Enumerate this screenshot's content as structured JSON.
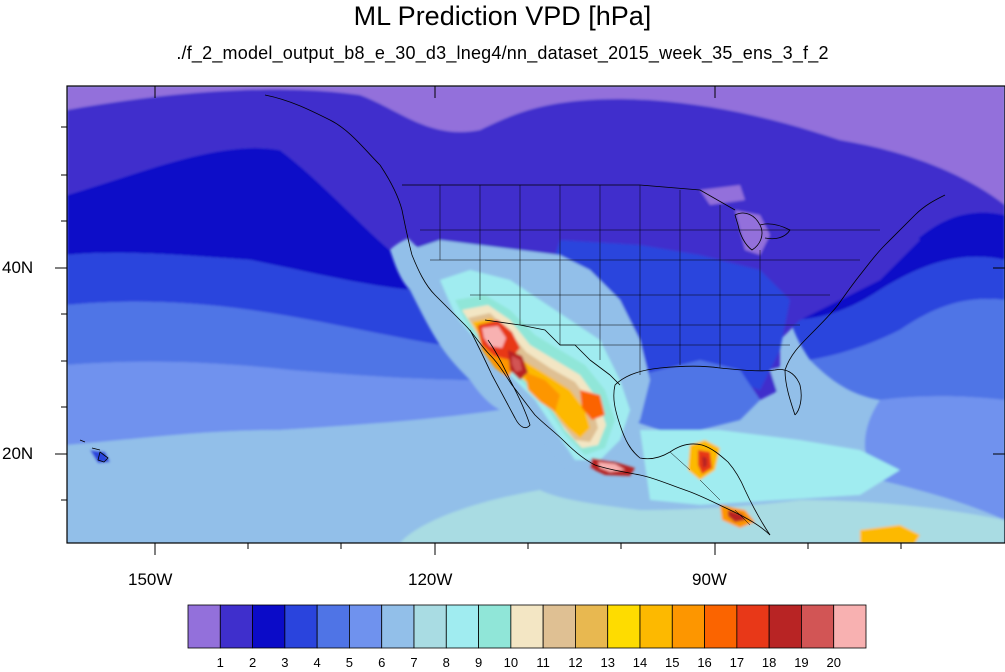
{
  "title": "ML Prediction VPD [hPa]",
  "subtitle": "./f_2_model_output_b8_e_30_d3_lneg4/nn_dataset_2015_week_35_ens_3_f_2",
  "axes": {
    "x_ticks": [
      "150W",
      "120W",
      "90W"
    ],
    "y_ticks": [
      "40N",
      "20N"
    ]
  },
  "colorbar": {
    "labels": [
      "1",
      "2",
      "3",
      "4",
      "5",
      "6",
      "7",
      "8",
      "9",
      "10",
      "11",
      "12",
      "13",
      "14",
      "15",
      "16",
      "17",
      "18",
      "19",
      "20"
    ],
    "colors": [
      "#9370db",
      "#3f2fcc",
      "#0b0bc8",
      "#2a44dd",
      "#4f74e6",
      "#6f92ee",
      "#92bfe9",
      "#a9dce3",
      "#a0ecf0",
      "#90e6d8",
      "#f3e6c4",
      "#dfc093",
      "#e8b850",
      "#fedc00",
      "#fdb900",
      "#fd9600",
      "#fb6400",
      "#e83818",
      "#b82424",
      "#d25555",
      "#f8b1b1"
    ]
  },
  "map": {
    "region": "Western North America, Mexico, Central America",
    "lon_range": [
      -160,
      -61
    ],
    "lat_range": [
      11,
      59
    ],
    "variable": "Vapor Pressure Deficit",
    "units": "hPa"
  }
}
